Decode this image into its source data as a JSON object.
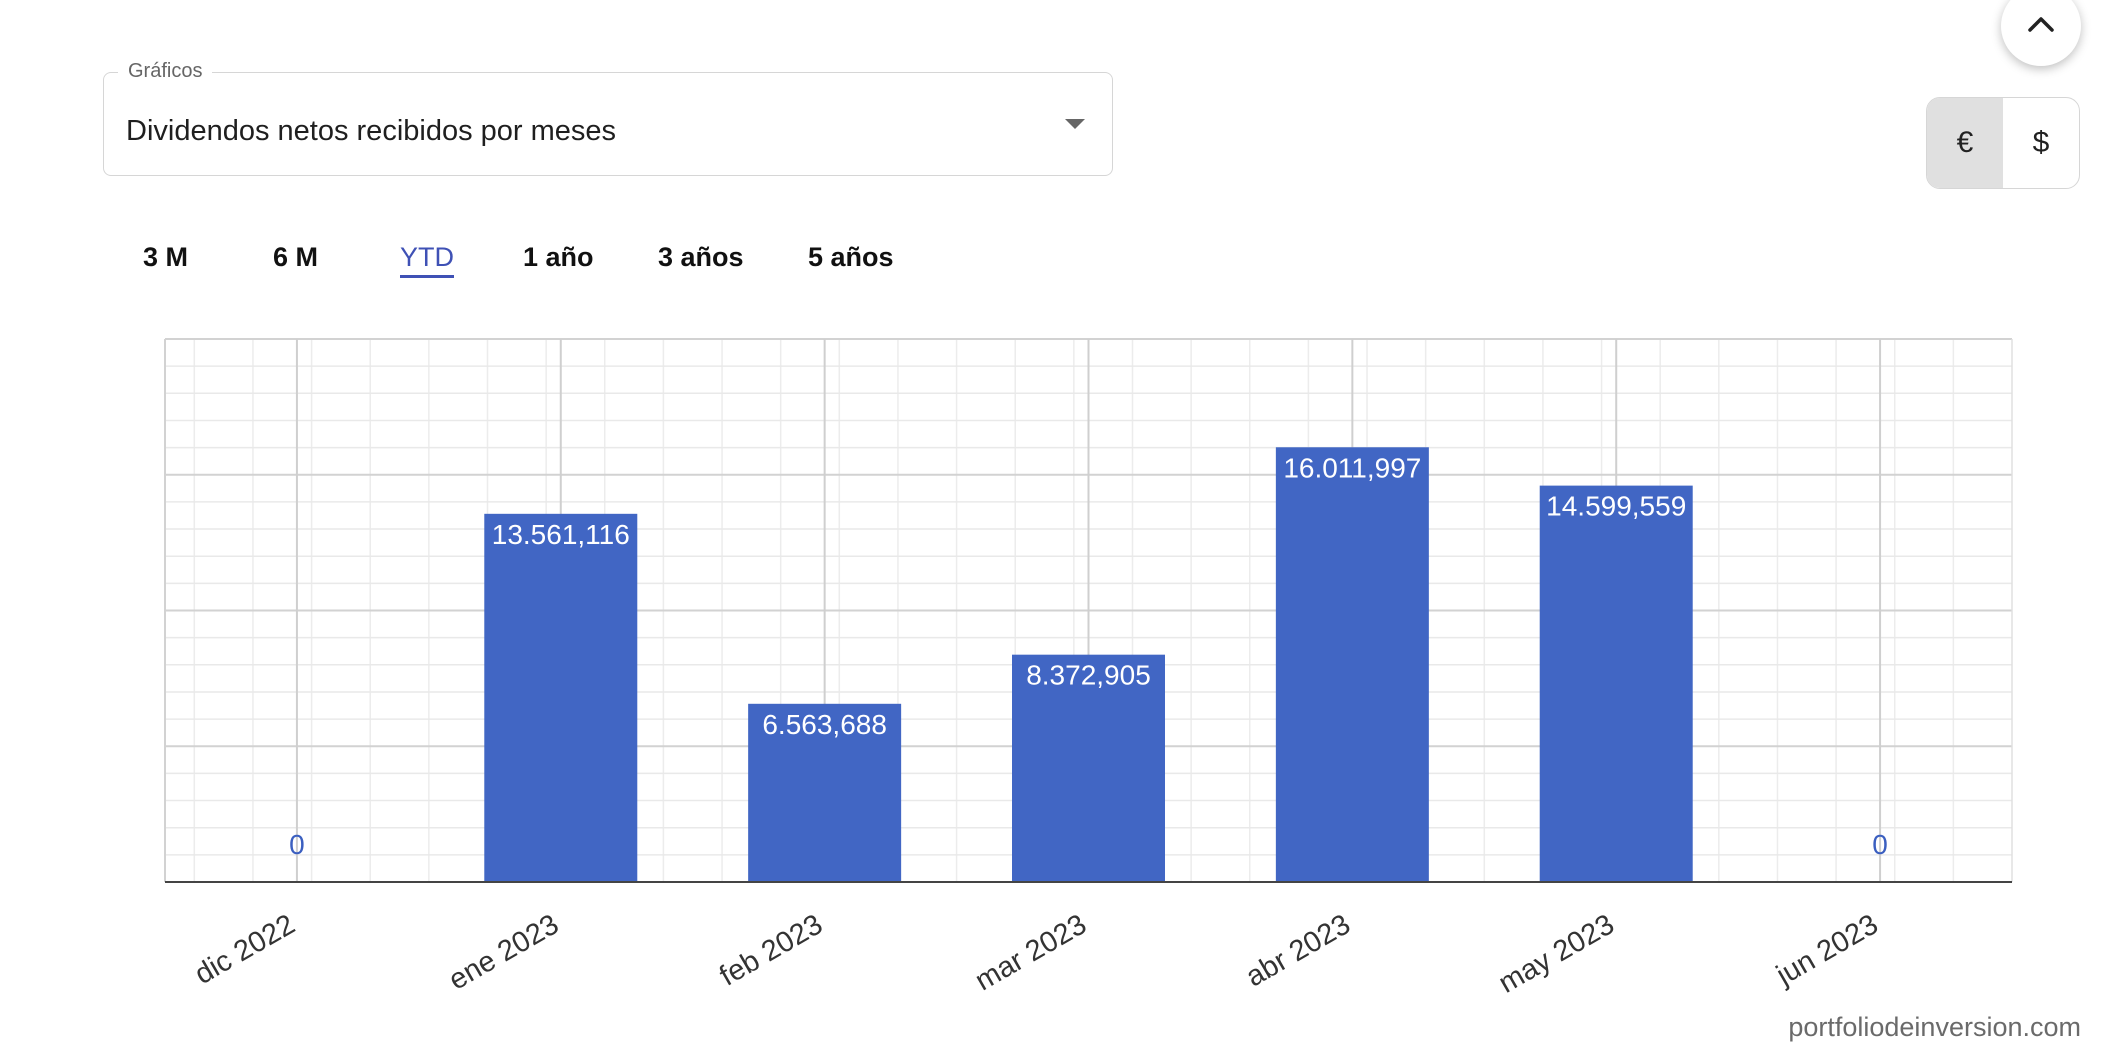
{
  "select": {
    "label": "Gráficos",
    "value": "Dividendos netos recibidos por meses"
  },
  "top_button": {
    "icon": "chevron-up-icon"
  },
  "currency": {
    "options": [
      "€",
      "$"
    ],
    "selected": "€"
  },
  "periods": [
    {
      "label": "3 M",
      "active": false
    },
    {
      "label": "6 M",
      "active": false
    },
    {
      "label": "YTD",
      "active": true
    },
    {
      "label": "1 año",
      "active": false
    },
    {
      "label": "3 años",
      "active": false
    },
    {
      "label": "5 años",
      "active": false
    }
  ],
  "colors": {
    "bar": "#4166c4",
    "zero_label": "#3b5fc0",
    "active_tab": "#3f51b5"
  },
  "chart_data": {
    "type": "bar",
    "categories": [
      "dic 2022",
      "ene 2023",
      "feb 2023",
      "mar 2023",
      "abr 2023",
      "may 2023",
      "jun 2023"
    ],
    "values": [
      0,
      13561.116,
      6563.688,
      8372.905,
      16011.997,
      14599.559,
      0
    ],
    "data_labels": [
      "0",
      "13.561,116",
      "6.563,688",
      "8.372,905",
      "16.011,997",
      "14.599,559",
      "0"
    ],
    "ylim": [
      0,
      20000
    ],
    "title": "",
    "xlabel": "",
    "ylabel": "",
    "grid": true,
    "legend": "none"
  },
  "footer": {
    "text": "portfoliodeinversion.com"
  }
}
